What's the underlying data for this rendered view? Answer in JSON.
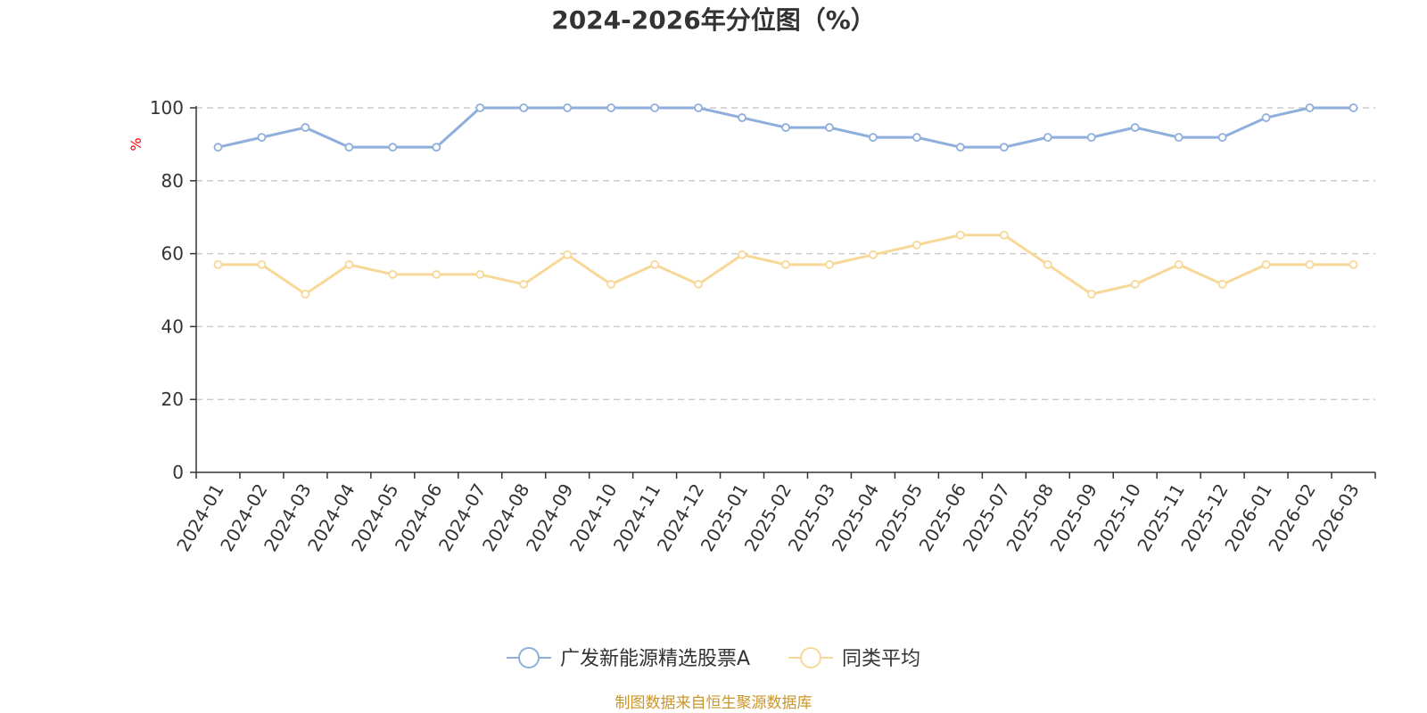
{
  "chart_data": {
    "type": "line",
    "title": "2024-2026年分位图（%）",
    "ylabel": "%",
    "xlabel": "",
    "ylim": [
      0,
      100
    ],
    "yticks": [
      0,
      20,
      40,
      60,
      80,
      100
    ],
    "grid": true,
    "legend_position": "bottom",
    "categories": [
      "2024-01",
      "2024-02",
      "2024-03",
      "2024-04",
      "2024-05",
      "2024-06",
      "2024-07",
      "2024-08",
      "2024-09",
      "2024-10",
      "2024-11",
      "2024-12",
      "2025-01",
      "2025-02",
      "2025-03",
      "2025-04",
      "2025-05",
      "2025-06",
      "2025-07",
      "2025-08",
      "2025-09",
      "2025-10",
      "2025-11",
      "2025-12",
      "2026-01",
      "2026-02",
      "2026-03"
    ],
    "series": [
      {
        "name": "广发新能源精选股票A",
        "color": "#8eaedb",
        "values": [
          89.2,
          91.9,
          94.6,
          89.2,
          89.2,
          89.2,
          100,
          100,
          100,
          100,
          100,
          100,
          97.3,
          94.6,
          94.6,
          91.9,
          91.9,
          89.2,
          89.2,
          91.9,
          91.9,
          94.6,
          91.9,
          91.9,
          97.3,
          100,
          100
        ]
      },
      {
        "name": "同类平均",
        "color": "#f8d898",
        "values": [
          57.0,
          57.0,
          48.9,
          57.0,
          54.3,
          54.3,
          54.3,
          51.6,
          59.7,
          51.6,
          57.0,
          51.6,
          59.7,
          57.0,
          57.0,
          59.7,
          62.4,
          65.1,
          65.1,
          57.0,
          48.9,
          51.6,
          57.0,
          51.6,
          57.0,
          57.0,
          57.0
        ]
      }
    ],
    "source_note": "制图数据来自恒生聚源数据库"
  },
  "colors": {
    "axis": "#333333",
    "grid": "#cccccc",
    "unit_label": "#ff0000",
    "source_note": "#c9962a"
  }
}
